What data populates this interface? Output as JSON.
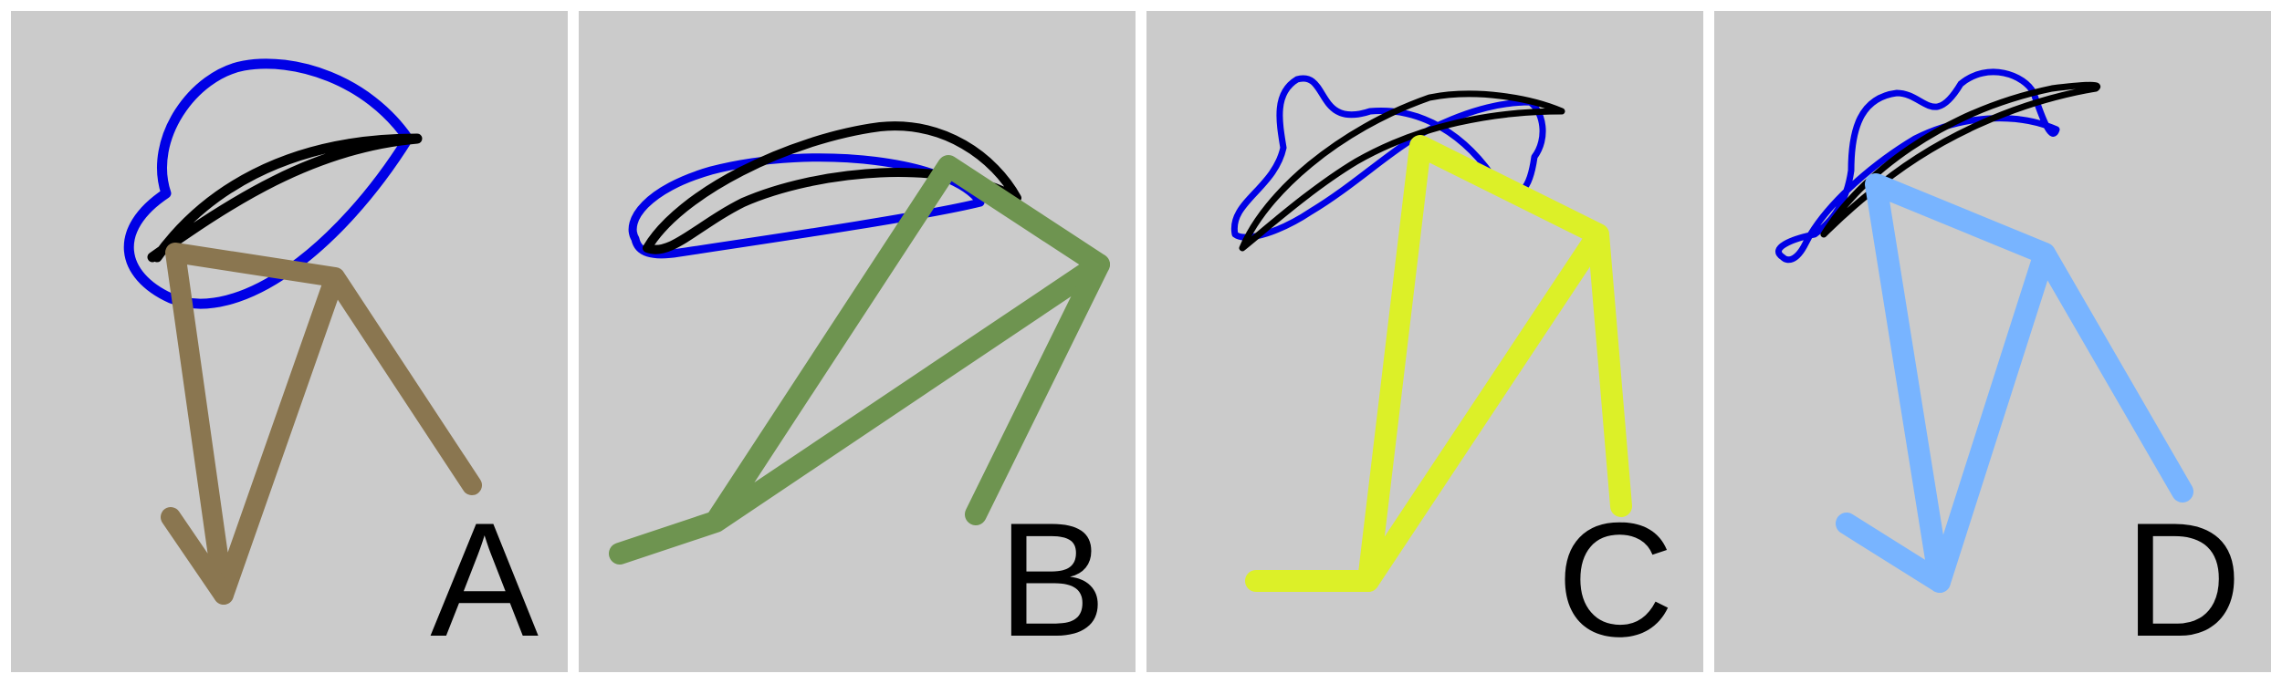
{
  "panels": [
    {
      "id": "A",
      "label": "A",
      "blue_curve_color": "#0000e6",
      "black_curve_color": "#000000",
      "arrow_color": "#8a7650"
    },
    {
      "id": "B",
      "label": "B",
      "blue_curve_color": "#0000e6",
      "black_curve_color": "#000000",
      "arrow_color": "#6e9450"
    },
    {
      "id": "C",
      "label": "C",
      "blue_curve_color": "#0000e6",
      "black_curve_color": "#000000",
      "arrow_color": "#dcf028"
    },
    {
      "id": "D",
      "label": "D",
      "blue_curve_color": "#0000e6",
      "black_curve_color": "#000000",
      "arrow_color": "#78b4ff"
    }
  ]
}
